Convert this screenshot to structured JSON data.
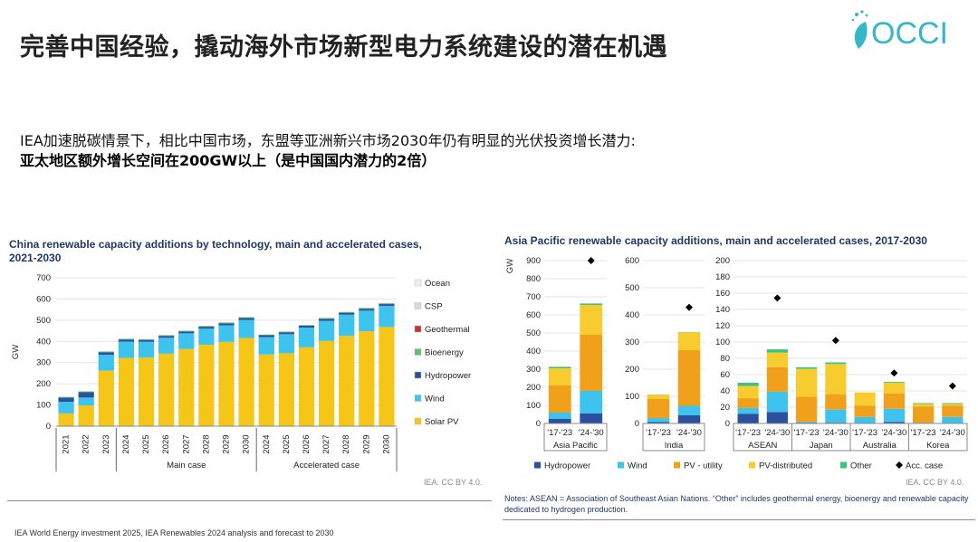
{
  "header": {
    "title": "完善中国经验，撬动海外市场新型电力系统建设的潜在机遇",
    "logo_text": "OCCI"
  },
  "intro": {
    "line1": "IEA加速脱碳情景下，相比中国市场，东盟等亚洲新兴市场2030年仍有明显的光伏投资增长潜力:",
    "line2": "亚太地区额外增长空间在200GW以上（是中国国内潜力的2倍）"
  },
  "china_chart": {
    "title_line1": "China renewable capacity additions by technology, main and accelerated cases,",
    "title_line2": "2021-2030",
    "credit": "IEA. CC BY 4.0."
  },
  "apac_chart": {
    "title": "Asia Pacific renewable capacity additions, main and accelerated cases, 2017-2030",
    "credit": "IEA. CC BY 4.0."
  },
  "notes": "Notes: ASEAN = Association of Southeast Asian Nations. “Other” includes geothermal energy, bioenergy and renewable capacity dedicated to hydrogen production.",
  "source": "IEA World Energy investment 2025, IEA Renewables 2024 analysis and forecast to 2030",
  "colors": {
    "solar_pv": "#f5c518",
    "wind": "#3ec3ef",
    "hydropower": "#2b50a0",
    "bioenergy": "#5cc45c",
    "geothermal": "#c0392b",
    "csp": "#d8d8d8",
    "ocean": "#eeeeee",
    "pv_utility": "#f0a01a",
    "pv_distributed": "#f8cc2e",
    "other": "#3cc47a",
    "acc_case": "#000000"
  },
  "chart_data": [
    {
      "type": "bar",
      "stacked": true,
      "ylabel": "GW",
      "ylim": [
        0,
        700
      ],
      "yticks": [
        0,
        100,
        200,
        300,
        400,
        500,
        600,
        700
      ],
      "categories": [
        "2021",
        "2022",
        "2023",
        "2024",
        "2025",
        "2026",
        "2027",
        "2028",
        "2029",
        "2030",
        "2024",
        "2025",
        "2026",
        "2027",
        "2028",
        "2029",
        "2030"
      ],
      "groups": [
        {
          "label": "",
          "start": 0,
          "end": 2
        },
        {
          "label": "Main case",
          "start": 3,
          "end": 9
        },
        {
          "label": "Accelerated case",
          "start": 10,
          "end": 16
        }
      ],
      "series": [
        {
          "name": "Solar PV",
          "color_key": "solar_pv",
          "values": [
            60,
            98,
            262,
            322,
            324,
            342,
            364,
            384,
            398,
            416,
            338,
            344,
            372,
            402,
            426,
            448,
            468
          ]
        },
        {
          "name": "Wind",
          "color_key": "wind",
          "values": [
            55,
            37,
            75,
            77,
            74,
            75,
            74,
            76,
            78,
            85,
            82,
            90,
            93,
            95,
            100,
            97,
            99
          ]
        },
        {
          "name": "Hydropower",
          "color_key": "hydropower",
          "values": [
            20,
            25,
            12,
            10,
            9,
            9,
            9,
            9,
            9,
            9,
            9,
            9,
            9,
            9,
            9,
            9,
            9
          ]
        },
        {
          "name": "Bioenergy",
          "color_key": "bioenergy",
          "values": [
            3,
            4,
            3,
            3,
            3,
            3,
            3,
            4,
            4,
            4,
            3,
            3,
            3,
            4,
            4,
            4,
            4
          ]
        },
        {
          "name": "Geothermal",
          "color_key": "geothermal",
          "values": [
            0,
            0,
            0,
            0,
            0,
            0,
            0,
            0,
            0,
            0,
            0,
            0,
            0,
            0,
            0,
            0,
            0
          ]
        },
        {
          "name": "CSP",
          "color_key": "csp",
          "values": [
            0,
            1,
            1,
            1,
            1,
            1,
            1,
            1,
            1,
            1,
            1,
            1,
            1,
            1,
            1,
            1,
            1
          ]
        },
        {
          "name": "Ocean",
          "color_key": "ocean",
          "values": [
            0,
            0,
            0,
            0,
            0,
            0,
            0,
            0,
            0,
            0,
            0,
            0,
            0,
            0,
            0,
            0,
            0
          ]
        }
      ],
      "legend": [
        "Ocean",
        "CSP",
        "Geothermal",
        "Bioenergy",
        "Hydropower",
        "Wind",
        "Solar PV"
      ],
      "legend_placement": "right"
    },
    {
      "type": "bar",
      "stacked": true,
      "ylabel": "GW",
      "legend_placement": "bottom",
      "legend": [
        "Hydropower",
        "Wind",
        "PV - utility",
        "PV-distributed",
        "Other",
        "Acc. case"
      ],
      "panels": [
        {
          "ylim": [
            0,
            900
          ],
          "yticks": [
            0,
            100,
            200,
            300,
            400,
            500,
            600,
            700,
            800,
            900
          ],
          "groups": [
            {
              "label": "Asia Pacific",
              "categories": [
                "'17-'23",
                "'24-'30"
              ]
            }
          ],
          "stacks": [
            {
              "Hydropower": 25,
              "Wind": 35,
              "PV - utility": 150,
              "PV-distributed": 95,
              "Other": 8,
              "Acc. case": null
            },
            {
              "Hydropower": 55,
              "Wind": 125,
              "PV - utility": 310,
              "PV-distributed": 165,
              "Other": 8,
              "Acc. case": 900
            }
          ]
        },
        {
          "ylim": [
            0,
            600
          ],
          "yticks": [
            0,
            100,
            200,
            300,
            400,
            500,
            600
          ],
          "groups": [
            {
              "label": "India",
              "categories": [
                "'17-'23",
                "'24-'30"
              ]
            }
          ],
          "stacks": [
            {
              "Hydropower": 5,
              "Wind": 15,
              "PV - utility": 70,
              "PV-distributed": 15,
              "Other": 1,
              "Acc. case": null
            },
            {
              "Hydropower": 30,
              "Wind": 35,
              "PV - utility": 205,
              "PV-distributed": 66,
              "Other": 1,
              "Acc. case": 428
            }
          ]
        },
        {
          "ylim": [
            0,
            200
          ],
          "yticks": [
            0,
            20,
            40,
            60,
            80,
            100,
            120,
            140,
            160,
            180,
            200
          ],
          "groups": [
            {
              "label": "ASEAN",
              "categories": [
                "'17-'23",
                "'24-'30"
              ]
            },
            {
              "label": "Japan",
              "categories": [
                "'17-'23",
                "'24-'30"
              ]
            },
            {
              "label": "Australia",
              "categories": [
                "'17-'23",
                "'24-'30"
              ]
            },
            {
              "label": "Korea",
              "categories": [
                "'17-'23",
                "'24-'30"
              ]
            }
          ],
          "stacks": [
            {
              "Hydropower": 12,
              "Wind": 7,
              "PV - utility": 12,
              "PV-distributed": 15,
              "Other": 4,
              "Acc. case": null
            },
            {
              "Hydropower": 14,
              "Wind": 25,
              "PV - utility": 30,
              "PV-distributed": 18,
              "Other": 4,
              "Acc. case": 154
            },
            {
              "Hydropower": 1,
              "Wind": 1,
              "PV - utility": 31,
              "PV-distributed": 34,
              "Other": 2,
              "Acc. case": null
            },
            {
              "Hydropower": 1,
              "Wind": 16,
              "PV - utility": 19,
              "PV-distributed": 37,
              "Other": 2,
              "Acc. case": 102
            },
            {
              "Hydropower": 0,
              "Wind": 8,
              "PV - utility": 14,
              "PV-distributed": 16,
              "Other": 0,
              "Acc. case": null
            },
            {
              "Hydropower": 2,
              "Wind": 16,
              "PV - utility": 19,
              "PV-distributed": 13,
              "Other": 1,
              "Acc. case": 62
            },
            {
              "Hydropower": 0,
              "Wind": 1,
              "PV - utility": 20,
              "PV-distributed": 3,
              "Other": 1,
              "Acc. case": null
            },
            {
              "Hydropower": 0,
              "Wind": 8,
              "PV - utility": 14,
              "PV-distributed": 2,
              "Other": 1,
              "Acc. case": 46
            }
          ]
        }
      ]
    }
  ]
}
